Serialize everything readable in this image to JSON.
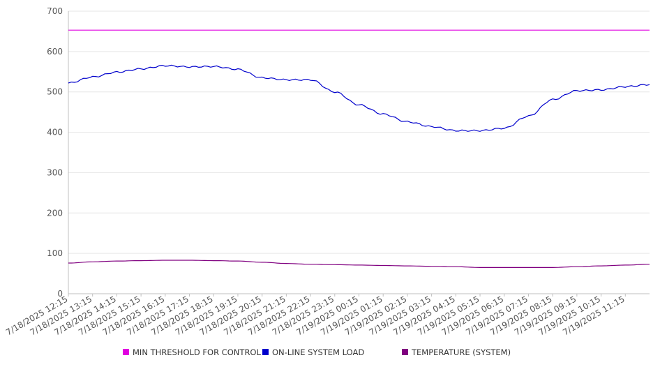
{
  "chart_data": {
    "type": "line",
    "title": "",
    "xlabel": "",
    "ylabel": "",
    "ylim": [
      0,
      700
    ],
    "yticks": [
      0,
      100,
      200,
      300,
      400,
      500,
      600,
      700
    ],
    "grid": true,
    "legend_position": "bottom",
    "x_ticks": [
      "7/18/2025 12:15",
      "7/18/2025 13:15",
      "7/18/2025 14:15",
      "7/18/2025 15:15",
      "7/18/2025 16:15",
      "7/18/2025 17:15",
      "7/18/2025 18:15",
      "7/18/2025 19:15",
      "7/18/2025 20:15",
      "7/18/2025 21:15",
      "7/18/2025 22:15",
      "7/18/2025 23:15",
      "7/19/2025 00:15",
      "7/19/2025 01:15",
      "7/19/2025 02:15",
      "7/19/2025 03:15",
      "7/19/2025 04:15",
      "7/19/2025 05:15",
      "7/19/2025 06:15",
      "7/19/2025 07:15",
      "7/19/2025 08:15",
      "7/19/2025 09:15",
      "7/19/2025 10:15",
      "7/19/2025 11:15"
    ],
    "series": [
      {
        "name": "MIN THRESHOLD FOR CONTROL",
        "color": "#e000e0",
        "values": [
          653,
          653,
          653,
          653,
          653,
          653,
          653,
          653,
          653,
          653,
          653,
          653,
          653,
          653,
          653,
          653,
          653,
          653,
          653,
          653,
          653,
          653,
          653,
          653,
          653
        ]
      },
      {
        "name": "ON-LINE SYSTEM LOAD",
        "color": "#0000cc",
        "values": [
          522,
          537,
          549,
          557,
          565,
          562,
          563,
          556,
          535,
          530,
          530,
          500,
          468,
          445,
          426,
          414,
          404,
          404,
          410,
          440,
          481,
          503,
          505,
          513,
          518
        ]
      },
      {
        "name": "TEMPERATURE (SYSTEM)",
        "color": "#800080",
        "values": [
          76,
          79,
          81,
          82,
          83,
          83,
          82,
          81,
          78,
          75,
          73,
          72,
          71,
          70,
          69,
          68,
          67,
          65,
          65,
          65,
          65,
          67,
          69,
          71,
          73
        ]
      }
    ]
  }
}
